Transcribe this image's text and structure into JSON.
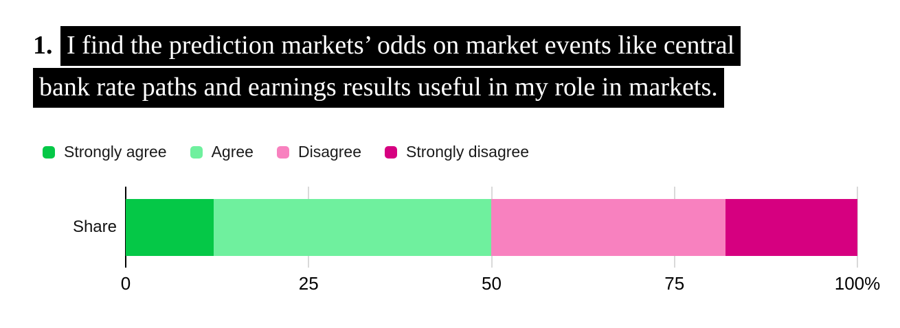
{
  "title": {
    "number": "1.",
    "lines": [
      "I find the prediction markets’ odds on market events like central",
      "bank rate paths and earnings results useful in my role in markets."
    ]
  },
  "chart_data": {
    "type": "bar",
    "orientation": "horizontal",
    "stacked": true,
    "categories": [
      "Share"
    ],
    "series": [
      {
        "name": "Strongly agree",
        "color": "#05C847",
        "values": [
          12
        ]
      },
      {
        "name": "Agree",
        "color": "#6FF09E",
        "values": [
          38
        ]
      },
      {
        "name": "Disagree",
        "color": "#F881BF",
        "values": [
          32
        ]
      },
      {
        "name": "Strongly disagree",
        "color": "#D60080",
        "values": [
          18
        ]
      }
    ],
    "xlabel": "",
    "ylabel": "",
    "xlim": [
      0,
      100
    ],
    "x_tick_values": [
      0,
      25,
      50,
      75,
      100
    ],
    "x_tick_labels": [
      "0",
      "25",
      "50",
      "75",
      "100%"
    ],
    "legend_position": "top-left",
    "grid": "vertical",
    "gridline_color": "#d9d9d9",
    "axis_color": "#000000"
  }
}
